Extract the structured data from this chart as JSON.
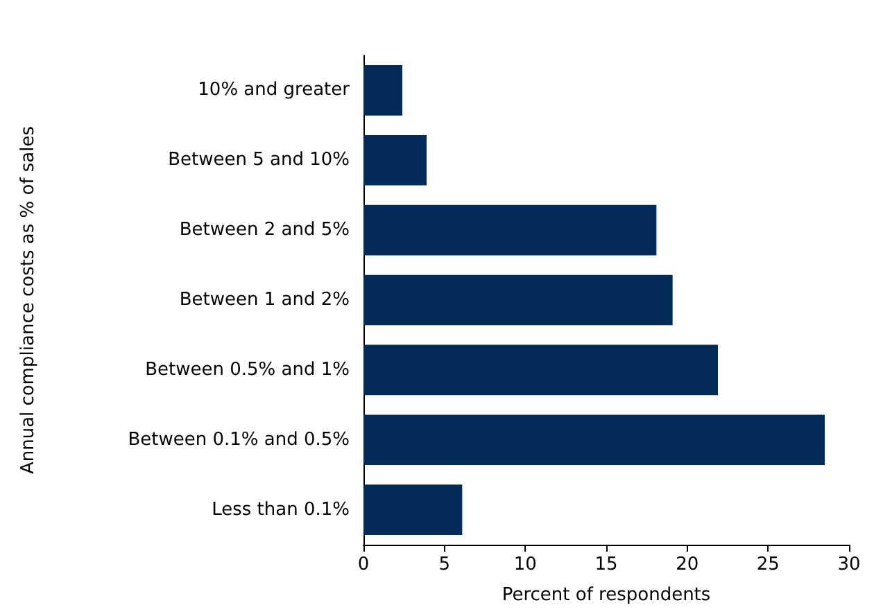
{
  "chart_data": {
    "type": "bar",
    "orientation": "horizontal",
    "xlabel": "Percent of respondents",
    "ylabel": "Annual compliance costs as % of sales",
    "categories": [
      "10% and greater",
      "Between 5 and 10%",
      "Between 2 and 5%",
      "Between 1 and 2%",
      "Between 0.5% and 1%",
      "Between 0.1% and 0.5%",
      "Less than 0.1%"
    ],
    "values": [
      2.4,
      3.9,
      18.1,
      19.1,
      21.9,
      28.5,
      6.1
    ],
    "color": "#022b57",
    "xlim": [
      0,
      30
    ],
    "xticks": [
      0,
      5,
      10,
      15,
      20,
      25,
      30
    ],
    "grid": false
  }
}
